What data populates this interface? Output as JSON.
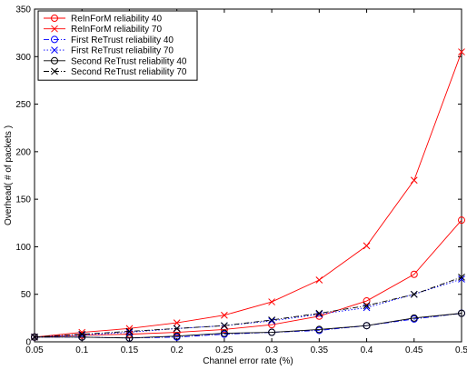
{
  "chart_data": {
    "type": "line",
    "title": "",
    "xlabel": "Channel error rate (%)",
    "ylabel": "Overhead( # of packets )",
    "xlim": [
      0.05,
      0.5
    ],
    "ylim": [
      0,
      350
    ],
    "x_ticks": [
      0.05,
      0.1,
      0.15,
      0.2,
      0.25,
      0.3,
      0.35,
      0.4,
      0.45,
      0.5
    ],
    "y_ticks": [
      0,
      50,
      100,
      150,
      200,
      250,
      300,
      350
    ],
    "x_tick_labels": [
      "0.05",
      "0.1",
      "0.15",
      "0.2",
      "0.25",
      "0.3",
      "0.35",
      "0.4",
      "0.45",
      "0.5"
    ],
    "y_tick_labels": [
      "0",
      "50",
      "100",
      "150",
      "200",
      "250",
      "300",
      "350"
    ],
    "grid": false,
    "legend_position": "top-left",
    "x": [
      0.05,
      0.1,
      0.15,
      0.2,
      0.25,
      0.3,
      0.35,
      0.4,
      0.45,
      0.5
    ],
    "series": [
      {
        "name": "ReInForM reliability 40",
        "color": "#ff0000",
        "marker": "circle",
        "dash": "solid",
        "values": [
          5,
          7,
          8,
          10,
          13,
          18,
          27,
          43,
          71,
          128
        ]
      },
      {
        "name": "ReInForM reliability 70",
        "color": "#ff0000",
        "marker": "x",
        "dash": "solid",
        "values": [
          5,
          10,
          14,
          20,
          28,
          42,
          65,
          101,
          170,
          305
        ]
      },
      {
        "name": "First ReTrust reliability 40",
        "color": "#0000ff",
        "marker": "circle",
        "dash": "dashdot",
        "values": [
          5,
          5,
          4,
          5,
          8,
          10,
          12,
          17,
          24,
          30
        ]
      },
      {
        "name": "First ReTrust reliability 70",
        "color": "#0000ff",
        "marker": "x",
        "dash": "dotted",
        "values": [
          5,
          7,
          10,
          14,
          17,
          22,
          29,
          36,
          50,
          66
        ]
      },
      {
        "name": "Second ReTrust reliability 40",
        "color": "#000000",
        "marker": "circle",
        "dash": "solid",
        "values": [
          5,
          5,
          4,
          6,
          9,
          10,
          13,
          17,
          25,
          30
        ]
      },
      {
        "name": "Second ReTrust reliability 70",
        "color": "#000000",
        "marker": "x",
        "dash": "dashdot",
        "values": [
          5,
          8,
          11,
          14,
          17,
          23,
          30,
          38,
          50,
          68
        ]
      }
    ]
  }
}
